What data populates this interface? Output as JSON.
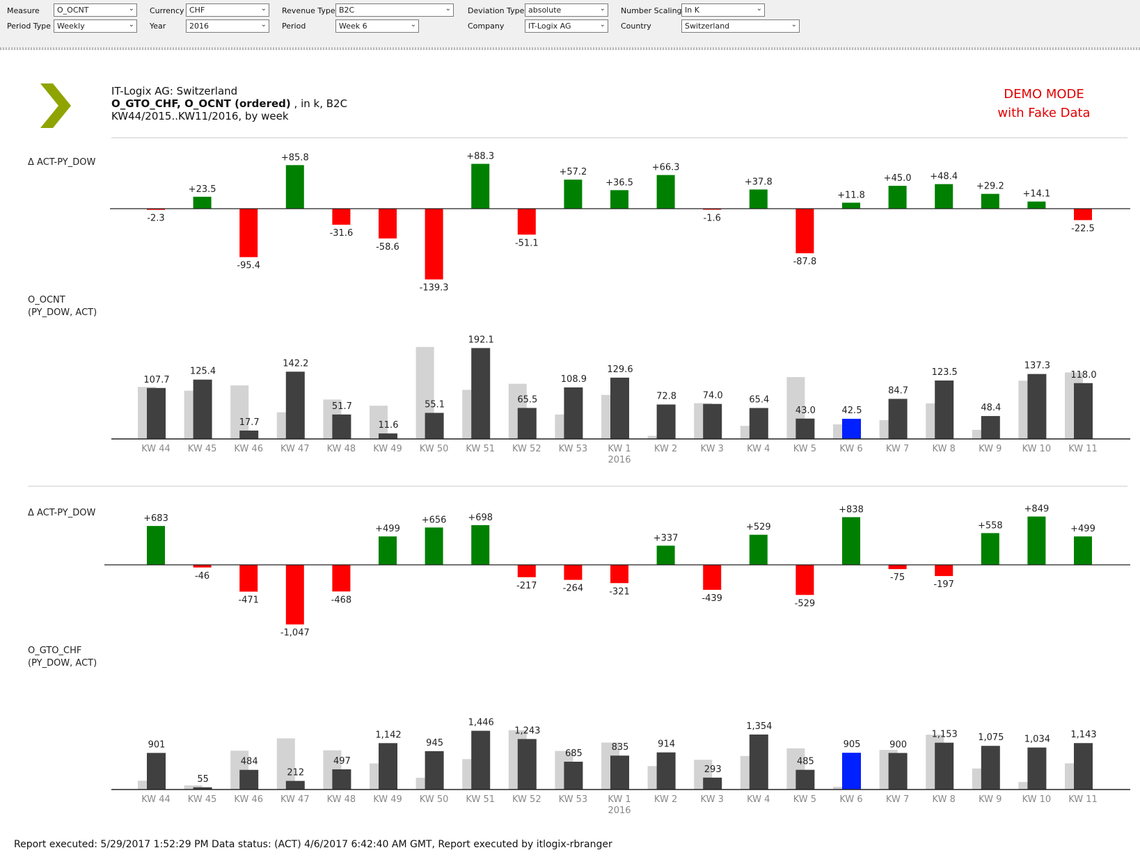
{
  "filters": [
    {
      "label": "Measure",
      "value": "O_OCNT"
    },
    {
      "label": "Period Type",
      "value": "Weekly"
    },
    {
      "label": "Currency",
      "value": "CHF"
    },
    {
      "label": "Year",
      "value": "2016"
    },
    {
      "label": "Revenue Type",
      "value": "B2C"
    },
    {
      "label": "Period",
      "value": "Week 6"
    },
    {
      "label": "Deviation Type",
      "value": "absolute"
    },
    {
      "label": "Company",
      "value": "IT-Logix AG"
    },
    {
      "label": "Number Scaling",
      "value": "In K"
    },
    {
      "label": "Country",
      "value": "Switzerland"
    }
  ],
  "report": {
    "title_line1": "IT-Logix AG: Switzerland",
    "title_bold": "O_GTO_CHF, O_OCNT (ordered)",
    "title_rest": " , in k, B2C",
    "title_line3": "KW44/2015..KW11/2016, by week",
    "demo_line1": "DEMO MODE",
    "demo_line2": "with Fake Data",
    "footer": "Report executed: 5/29/2017 1:52:29 PM  Data status: (ACT) 4/6/2017 6:42:40 AM GMT, Report executed by itlogix-rbranger"
  },
  "colors": {
    "positive": "#008000",
    "negative": "#ff0000",
    "act": "#404040",
    "pv": "#d3d3d3",
    "highlight": "#0020ff",
    "axis": "#222222",
    "tick": "#888888"
  },
  "chart_data": [
    {
      "type": "bar",
      "title": "Δ ACT-PY_DOW",
      "categories": [
        "KW 44",
        "KW 45",
        "KW 46",
        "KW 47",
        "KW 48",
        "KW 49",
        "KW 50",
        "KW 51",
        "KW 52",
        "KW 53",
        "KW 1",
        "KW 2",
        "KW 3",
        "KW 4",
        "KW 5",
        "KW 6",
        "KW 7",
        "KW 8",
        "KW 9",
        "KW 10",
        "KW 11"
      ],
      "values": [
        -2.3,
        23.5,
        -95.4,
        85.8,
        -31.6,
        -58.6,
        -139.3,
        88.3,
        -51.1,
        57.2,
        36.5,
        66.3,
        -1.6,
        37.8,
        -87.8,
        11.8,
        45.0,
        48.4,
        29.2,
        14.1,
        -22.5
      ],
      "labels": [
        "-2.3",
        "+23.5",
        "-95.4",
        "+85.8",
        "-31.6",
        "-58.6",
        "-139.3",
        "+88.3",
        "-51.1",
        "+57.2",
        "+36.5",
        "+66.3",
        "-1.6",
        "+37.8",
        "-87.8",
        "+11.8",
        "+45.0",
        "+48.4",
        "+29.2",
        "+14.1",
        "-22.5"
      ]
    },
    {
      "type": "bar",
      "title_line1": "O_OCNT",
      "title_line2": "(PY_DOW, ACT)",
      "categories": [
        "KW 44",
        "KW 45",
        "KW 46",
        "KW 47",
        "KW 48",
        "KW 49",
        "KW 50",
        "KW 51",
        "KW 52",
        "KW 53",
        "KW 1",
        "KW 2",
        "KW 3",
        "KW 4",
        "KW 5",
        "KW 6",
        "KW 7",
        "KW 8",
        "KW 9",
        "KW 10",
        "KW 11"
      ],
      "category_sublabels": [
        "",
        "",
        "",
        "",
        "",
        "",
        "",
        "",
        "",
        "",
        "2016",
        "",
        "",
        "",
        "",
        "",
        "",
        "",
        "",
        "",
        ""
      ],
      "highlight_index": 15,
      "series": [
        {
          "name": "PY_DOW",
          "values": [
            110.0,
            101.9,
            113.1,
            56.4,
            83.3,
            70.2,
            194.4,
            103.8,
            116.6,
            51.7,
            93.1,
            6.5,
            75.6,
            27.6,
            130.8,
            30.7,
            39.7,
            75.1,
            19.2,
            123.2,
            140.5
          ]
        },
        {
          "name": "ACT",
          "values": [
            107.7,
            125.4,
            17.7,
            142.2,
            51.7,
            11.6,
            55.1,
            192.1,
            65.5,
            108.9,
            129.6,
            72.8,
            74.0,
            65.4,
            43.0,
            42.5,
            84.7,
            123.5,
            48.4,
            137.3,
            118.0
          ]
        }
      ],
      "labels": [
        "107.7",
        "125.4",
        "17.7",
        "142.2",
        "51.7",
        "11.6",
        "55.1",
        "192.1",
        "65.5",
        "108.9",
        "129.6",
        "72.8",
        "74.0",
        "65.4",
        "43.0",
        "42.5",
        "84.7",
        "123.5",
        "48.4",
        "137.3",
        "118.0"
      ]
    },
    {
      "type": "bar",
      "title": "Δ ACT-PY_DOW",
      "categories": [
        "KW 44",
        "KW 45",
        "KW 46",
        "KW 47",
        "KW 48",
        "KW 49",
        "KW 50",
        "KW 51",
        "KW 52",
        "KW 53",
        "KW 1",
        "KW 2",
        "KW 3",
        "KW 4",
        "KW 5",
        "KW 6",
        "KW 7",
        "KW 8",
        "KW 9",
        "KW 10",
        "KW 11"
      ],
      "values": [
        683,
        -46,
        -471,
        -1047,
        -468,
        499,
        656,
        698,
        -217,
        -264,
        -321,
        337,
        -439,
        529,
        -529,
        838,
        -75,
        -197,
        558,
        849,
        499
      ],
      "labels": [
        "+683",
        "-46",
        "-471",
        "-1,047",
        "-468",
        "+499",
        "+656",
        "+698",
        "-217",
        "-264",
        "-321",
        "+337",
        "-439",
        "+529",
        "-529",
        "+838",
        "-75",
        "-197",
        "+558",
        "+849",
        "+499"
      ]
    },
    {
      "type": "bar",
      "title_line1": "O_GTO_CHF",
      "title_line2": "(PY_DOW, ACT)",
      "categories": [
        "KW 44",
        "KW 45",
        "KW 46",
        "KW 47",
        "KW 48",
        "KW 49",
        "KW 50",
        "KW 51",
        "KW 52",
        "KW 53",
        "KW 1",
        "KW 2",
        "KW 3",
        "KW 4",
        "KW 5",
        "KW 6",
        "KW 7",
        "KW 8",
        "KW 9",
        "KW 10",
        "KW 11"
      ],
      "category_sublabels": [
        "",
        "",
        "",
        "",
        "",
        "",
        "",
        "",
        "",
        "",
        "2016",
        "",
        "",
        "",
        "",
        "",
        "",
        "",
        "",
        "",
        ""
      ],
      "highlight_index": 15,
      "series": [
        {
          "name": "PY_DOW",
          "values": [
            218,
            101,
            955,
            1259,
            965,
            643,
            289,
            748,
            1460,
            949,
            1156,
            577,
            732,
            825,
            1014,
            67,
            975,
            1350,
            517,
            185,
            644
          ]
        },
        {
          "name": "ACT",
          "values": [
            901,
            55,
            484,
            212,
            497,
            1142,
            945,
            1446,
            1243,
            685,
            835,
            914,
            293,
            1354,
            485,
            905,
            900,
            1153,
            1075,
            1034,
            1143
          ]
        }
      ],
      "labels": [
        "901",
        "55",
        "484",
        "212",
        "497",
        "1,142",
        "945",
        "1,446",
        "1,243",
        "685",
        "835",
        "914",
        "293",
        "1,354",
        "485",
        "905",
        "900",
        "1,153",
        "1,075",
        "1,034",
        "1,143"
      ]
    }
  ]
}
